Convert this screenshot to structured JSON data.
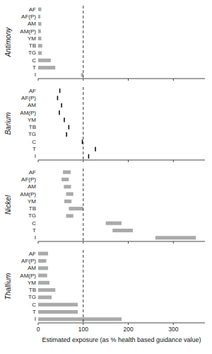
{
  "chart_data": [
    {
      "type": "bar",
      "orientation": "horizontal",
      "ylabel": "Antimony",
      "categories": [
        "AF",
        "AF(P)",
        "AM",
        "AM(P)",
        "YM",
        "TB",
        "TG",
        "C",
        "T",
        "I"
      ],
      "base": [
        0,
        0,
        0,
        0,
        0,
        0,
        0,
        0,
        0,
        95
      ],
      "values": [
        7,
        5,
        7,
        6,
        7,
        9,
        8,
        28,
        38,
        100
      ],
      "color": "#aaaaaa",
      "reference_line": 100,
      "xlim": [
        0,
        370
      ],
      "xticks": [
        0,
        100,
        200,
        300
      ],
      "tick_labels": "y"
    },
    {
      "type": "scatter",
      "orientation": "horizontal",
      "ylabel": "Barium",
      "marker": "line",
      "categories": [
        "AF",
        "AF(P)",
        "AM",
        "AM(P)",
        "YM",
        "TB",
        "TG",
        "C",
        "T",
        "I"
      ],
      "values": [
        48,
        43,
        52,
        47,
        58,
        68,
        63,
        98,
        127,
        112
      ],
      "color": "#000000",
      "reference_line": 100,
      "xlim": [
        0,
        370
      ],
      "xticks": [
        0,
        100,
        200,
        300
      ],
      "tick_labels": "y"
    },
    {
      "type": "bar",
      "orientation": "horizontal",
      "ylabel": "Nickel",
      "categories": [
        "AF",
        "AF(P)",
        "AM",
        "AM(P)",
        "YM",
        "TB",
        "TG",
        "C",
        "T",
        "I"
      ],
      "base": [
        55,
        52,
        57,
        62,
        58,
        68,
        62,
        150,
        165,
        260
      ],
      "values": [
        72,
        68,
        73,
        78,
        74,
        100,
        78,
        185,
        210,
        350
      ],
      "color": "#aaaaaa",
      "reference_line": 100,
      "xlim": [
        0,
        370
      ],
      "xticks": [
        0,
        100,
        200,
        300
      ],
      "tick_labels": "y"
    },
    {
      "type": "bar",
      "orientation": "horizontal",
      "ylabel": "Thallium",
      "xlabel": "Estimated exposure (as % health based guidance value)",
      "categories": [
        "AF",
        "AF(P)",
        "AM",
        "AM(P)",
        "YM",
        "TB",
        "TG",
        "C",
        "T",
        "I"
      ],
      "base": [
        0,
        0,
        0,
        0,
        0,
        0,
        0,
        0,
        0,
        0
      ],
      "values": [
        22,
        18,
        22,
        20,
        25,
        38,
        30,
        88,
        88,
        185
      ],
      "color": "#aaaaaa",
      "reference_line": 100,
      "xlim": [
        0,
        370
      ],
      "xticks": [
        0,
        100,
        200,
        300
      ]
    }
  ]
}
